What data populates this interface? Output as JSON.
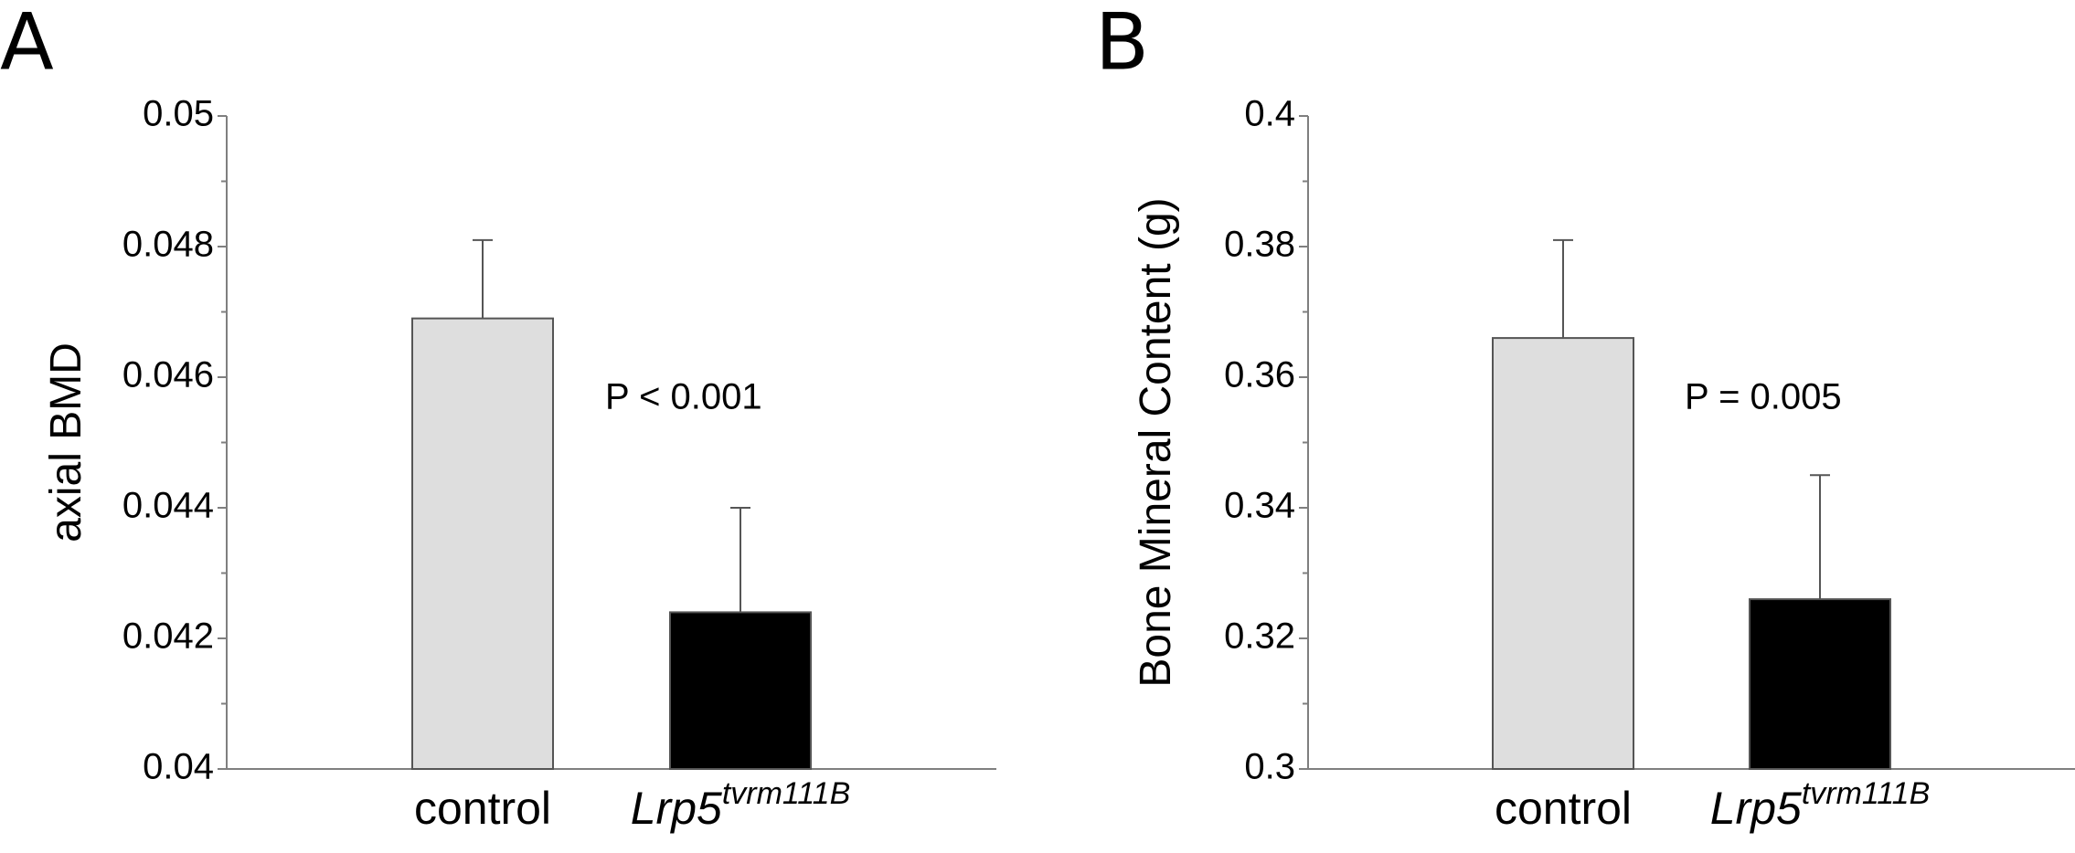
{
  "chart_data": [
    {
      "type": "bar",
      "panel": "A",
      "categories": [
        "control",
        "Lrp5tvrm111B"
      ],
      "category_labels": [
        {
          "base": "control",
          "sup": ""
        },
        {
          "base": "Lrp5",
          "sup": "tvrm111B"
        }
      ],
      "values": [
        0.0469,
        0.0424
      ],
      "errors": [
        0.0012,
        0.0016
      ],
      "colors": [
        "#dedede",
        "#000000"
      ],
      "ylabel": "axial BMD",
      "ylim": [
        0.04,
        0.05
      ],
      "yticks": [
        0.04,
        0.042,
        0.044,
        0.046,
        0.048,
        0.05
      ],
      "ytick_labels": [
        "0.04",
        "0.042",
        "0.044",
        "0.046",
        "0.048",
        "0.05"
      ],
      "annotation": "P < 0.001",
      "grid": false
    },
    {
      "type": "bar",
      "panel": "B",
      "categories": [
        "control",
        "Lrp5tvrm111B"
      ],
      "category_labels": [
        {
          "base": "control",
          "sup": ""
        },
        {
          "base": "Lrp5",
          "sup": "tvrm111B"
        }
      ],
      "values": [
        0.366,
        0.326
      ],
      "errors": [
        0.015,
        0.019
      ],
      "colors": [
        "#dedede",
        "#000000"
      ],
      "ylabel": "Bone Mineral Content (g)",
      "ylim": [
        0.3,
        0.4
      ],
      "yticks": [
        0.3,
        0.32,
        0.34,
        0.36,
        0.38,
        0.4
      ],
      "ytick_labels": [
        "0.3",
        "0.32",
        "0.34",
        "0.36",
        "0.38",
        "0.4"
      ],
      "annotation": "P = 0.005",
      "grid": false
    }
  ]
}
